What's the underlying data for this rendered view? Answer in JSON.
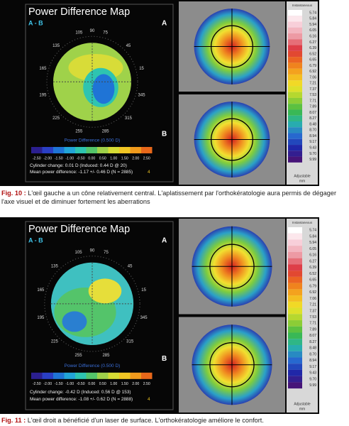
{
  "figures": [
    {
      "title": "Power Difference Map",
      "subtitle": "A - B",
      "label_a": "A",
      "label_b": "B",
      "angles": [
        "135",
        "105",
        "90",
        "75",
        "45",
        "165",
        "15",
        "195",
        "345",
        "225",
        "255",
        "285",
        "315"
      ],
      "scale_title": "Power Difference (0.500 D)",
      "scale_labels": [
        "-2.50",
        "-2.00",
        "-1.50",
        "-1.00",
        "-0.50",
        "0.00",
        "0.50",
        "1.00",
        "1.50",
        "2.00",
        "2.50"
      ],
      "cylinder": "Cylinder change: 0.01 D (Induced: 0.44 D @ 20)",
      "mean": "Mean power difference: -1.17 +/- 0.46 D (N = 2885)",
      "marker": "4",
      "legend_header": "Instantaneous",
      "legend_values": [
        "5.74",
        "5.84",
        "5.94",
        "6.05",
        "6.16",
        "6.27",
        "6.39",
        "6.52",
        "6.65",
        "6.79",
        "6.92",
        "7.06",
        "7.21",
        "7.37",
        "7.53",
        "7.71",
        "7.89",
        "8.07",
        "8.27",
        "8.48",
        "8.70",
        "8.94",
        "9.17",
        "9.43",
        "9.70",
        "9.99"
      ],
      "legend_foot_1": "Adjustable",
      "legend_foot_2": "mm",
      "caption_label": "Fig. 10 :",
      "caption_text": "L'œil gauche a un cône relativement central. L'aplatissement par l'orthokératologie aura permis de dégager l'axe visuel et de diminuer fortement les aberrations"
    },
    {
      "title": "Power Difference Map",
      "subtitle": "A - B",
      "label_a": "A",
      "label_b": "B",
      "angles": [
        "135",
        "105",
        "90",
        "75",
        "45",
        "165",
        "15",
        "195",
        "345",
        "225",
        "255",
        "285",
        "315"
      ],
      "scale_title": "Power Difference (0.500 D)",
      "scale_labels": [
        "-2.50",
        "-2.00",
        "-1.50",
        "-1.00",
        "-0.50",
        "0.00",
        "0.50",
        "1.00",
        "1.50",
        "2.00",
        "2.50"
      ],
      "cylinder": "Cylinder change: -0.42 D (Induced: 0.56 D @ 153)",
      "mean": "Mean power difference: -1.08 +/- 0.62 D (N = 2888)",
      "marker": "4",
      "legend_header": "Instantaneous",
      "legend_values": [
        "5.74",
        "5.84",
        "5.94",
        "6.05",
        "6.16",
        "6.27",
        "6.39",
        "6.52",
        "6.65",
        "6.79",
        "6.92",
        "7.06",
        "7.21",
        "7.37",
        "7.53",
        "7.71",
        "7.89",
        "8.07",
        "8.27",
        "8.48",
        "8.70",
        "8.94",
        "9.17",
        "9.43",
        "9.70",
        "9.99"
      ],
      "legend_foot_1": "Adjustable",
      "legend_foot_2": "mm",
      "caption_label": "Fig. 11 :",
      "caption_text": "L'œil droit a bénéficié d'un laser de surface. L'orthokératologie améliore le confort."
    }
  ]
}
